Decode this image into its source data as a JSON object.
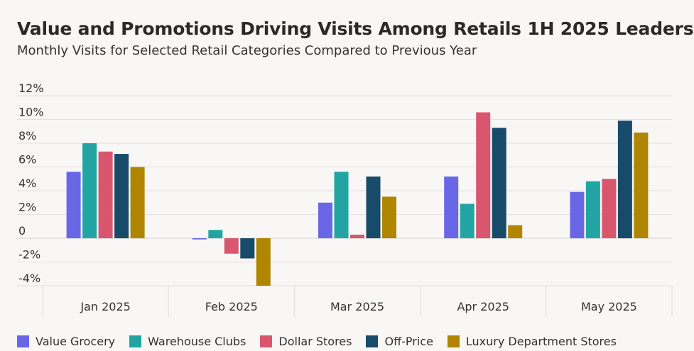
{
  "chart_data": {
    "type": "bar",
    "title": "Value and Promotions Driving Visits Among Retails 1H 2025 Leaders",
    "subtitle": "Monthly Visits for Selected Retail Categories Compared to Previous Year",
    "categories": [
      "Jan 2025",
      "Feb 2025",
      "Mar 2025",
      "Apr 2025",
      "May 2025"
    ],
    "series": [
      {
        "name": "Value Grocery",
        "color": "#6a67e6",
        "values": [
          5.6,
          -0.1,
          3.0,
          5.2,
          3.9
        ]
      },
      {
        "name": "Warehouse Clubs",
        "color": "#22a5a2",
        "values": [
          8.0,
          0.7,
          5.6,
          2.9,
          4.8
        ]
      },
      {
        "name": "Dollar Stores",
        "color": "#d9566f",
        "values": [
          7.3,
          -1.3,
          0.3,
          10.6,
          5.0
        ]
      },
      {
        "name": "Off-Price",
        "color": "#174b69",
        "values": [
          7.1,
          -1.7,
          5.2,
          9.3,
          9.9
        ]
      },
      {
        "name": "Luxury Department Stores",
        "color": "#b08500",
        "values": [
          6.0,
          -4.0,
          3.5,
          1.1,
          8.9
        ]
      }
    ],
    "ylim": [
      -4,
      12
    ],
    "yticks": [
      -4,
      -2,
      0,
      2,
      4,
      6,
      8,
      10,
      12
    ],
    "ytick_labels": [
      "-4%",
      "-2%",
      "0",
      "2%",
      "4%",
      "6%",
      "8%",
      "10%",
      "12%"
    ],
    "xlabel": "",
    "ylabel": "",
    "grid": true,
    "legend_position": "bottom-left"
  }
}
